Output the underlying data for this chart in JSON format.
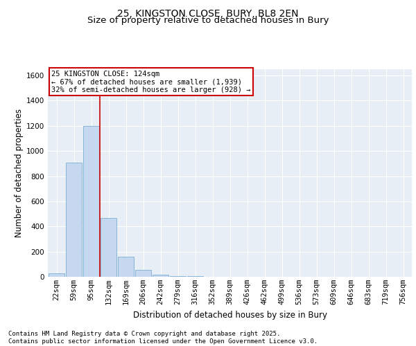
{
  "title_line1": "25, KINGSTON CLOSE, BURY, BL8 2EN",
  "title_line2": "Size of property relative to detached houses in Bury",
  "xlabel": "Distribution of detached houses by size in Bury",
  "ylabel": "Number of detached properties",
  "categories": [
    "22sqm",
    "59sqm",
    "95sqm",
    "132sqm",
    "169sqm",
    "206sqm",
    "242sqm",
    "279sqm",
    "316sqm",
    "352sqm",
    "389sqm",
    "426sqm",
    "462sqm",
    "499sqm",
    "536sqm",
    "573sqm",
    "609sqm",
    "646sqm",
    "683sqm",
    "719sqm",
    "756sqm"
  ],
  "values": [
    30,
    910,
    1200,
    470,
    160,
    55,
    18,
    8,
    3,
    0,
    0,
    0,
    0,
    0,
    0,
    0,
    0,
    0,
    0,
    0,
    0
  ],
  "bar_color": "#c5d8f0",
  "bar_edge_color": "#7aadd4",
  "vline_x_index": 2,
  "vline_color": "#cc0000",
  "annotation_line1": "25 KINGSTON CLOSE: 124sqm",
  "annotation_line2": "← 67% of detached houses are smaller (1,939)",
  "annotation_line3": "32% of semi-detached houses are larger (928) →",
  "annotation_box_color": "#cc0000",
  "ylim": [
    0,
    1650
  ],
  "yticks": [
    0,
    200,
    400,
    600,
    800,
    1000,
    1200,
    1400,
    1600
  ],
  "background_color": "#e8eef5",
  "grid_color": "#ffffff",
  "footnote": "Contains HM Land Registry data © Crown copyright and database right 2025.\nContains public sector information licensed under the Open Government Licence v3.0.",
  "title_fontsize": 10,
  "subtitle_fontsize": 9.5,
  "axis_label_fontsize": 8.5,
  "tick_fontsize": 7.5,
  "annotation_fontsize": 7.5,
  "footnote_fontsize": 6.5
}
